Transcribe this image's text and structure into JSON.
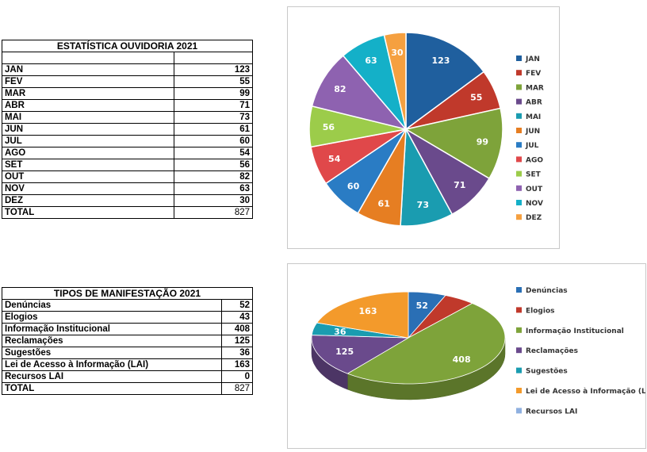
{
  "tables": {
    "monthly": {
      "title": "ESTATÍSTICA OUVIDORIA 2021",
      "rows": [
        {
          "label": "JAN",
          "value": "123"
        },
        {
          "label": "FEV",
          "value": "55"
        },
        {
          "label": "MAR",
          "value": "99"
        },
        {
          "label": "ABR",
          "value": "71"
        },
        {
          "label": "MAI",
          "value": "73"
        },
        {
          "label": "JUN",
          "value": "61"
        },
        {
          "label": "JUL",
          "value": "60"
        },
        {
          "label": "AGO",
          "value": "54"
        },
        {
          "label": "SET",
          "value": "56"
        },
        {
          "label": "OUT",
          "value": "82"
        },
        {
          "label": "NOV",
          "value": "63"
        },
        {
          "label": "DEZ",
          "value": "30"
        }
      ],
      "total_label": "TOTAL",
      "total_value": "827"
    },
    "types": {
      "title": "TIPOS DE MANIFESTAÇÃO 2021",
      "rows": [
        {
          "label": "Denúncias",
          "value": "52"
        },
        {
          "label": "Elogios",
          "value": "43"
        },
        {
          "label": "Informação Institucional",
          "value": "408"
        },
        {
          "label": "Reclamações",
          "value": "125"
        },
        {
          "label": "Sugestões",
          "value": "36"
        },
        {
          "label": "Lei de Acesso à Informação (LAI)",
          "value": "163"
        },
        {
          "label": "Recursos LAI",
          "value": "0"
        }
      ],
      "total_label": "TOTAL",
      "total_value": "827"
    }
  },
  "chart_data": [
    {
      "type": "pie",
      "title": "",
      "categories": [
        "JAN",
        "FEV",
        "MAR",
        "ABR",
        "MAI",
        "JUN",
        "JUL",
        "AGO",
        "SET",
        "OUT",
        "NOV",
        "DEZ"
      ],
      "values": [
        123,
        55,
        99,
        71,
        73,
        61,
        60,
        54,
        56,
        82,
        63,
        30
      ],
      "colors": [
        "#1f5f9e",
        "#c0392b",
        "#7ea33a",
        "#6a4a8c",
        "#1a9cb0",
        "#e67e22",
        "#2a7cc4",
        "#e0484a",
        "#9ccc4a",
        "#8e62b0",
        "#14b0c8",
        "#f5a040"
      ],
      "legend": "right"
    },
    {
      "type": "pie",
      "style": "3d",
      "title": "",
      "categories": [
        "Denúncias",
        "Elogios",
        "Informação Institucional",
        "Reclamações",
        "Sugestões",
        "Lei de Acesso à Informação (LAI)",
        "Recursos LAI"
      ],
      "values": [
        52,
        43,
        408,
        125,
        36,
        163,
        0
      ],
      "shown_labels": [
        "52",
        "",
        "408",
        "125",
        "36",
        "163",
        ""
      ],
      "colors": [
        "#2a6fb5",
        "#c0392b",
        "#7ea33a",
        "#6a4a8c",
        "#1a9cb0",
        "#f39a2b",
        "#8fb0e0"
      ],
      "legend": "right"
    }
  ]
}
